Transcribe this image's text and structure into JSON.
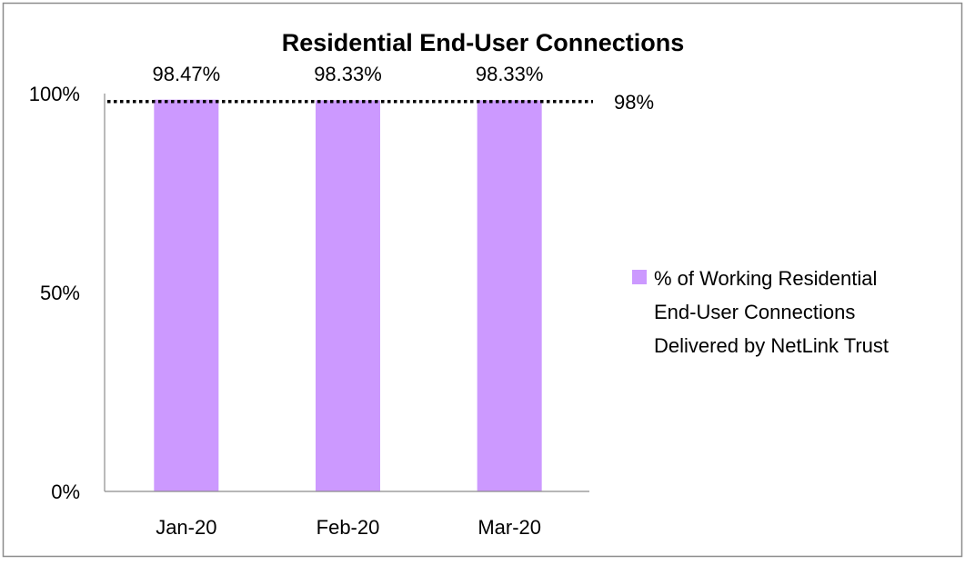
{
  "chart_data": {
    "type": "bar",
    "title": "Residential End-User Connections",
    "xlabel": "",
    "ylabel": "",
    "categories": [
      "Jan-20",
      "Feb-20",
      "Mar-20"
    ],
    "series": [
      {
        "name": "% of Working Residential End-User Connections Delivered by NetLink Trust",
        "legend_lines": [
          "% of Working Residential",
          "End-User Connections",
          "Delivered by NetLink Trust"
        ],
        "values": [
          98.47,
          98.33,
          98.33
        ],
        "labels": [
          "98.47%",
          "98.33%",
          "98.33%"
        ],
        "color": "#cc99ff"
      }
    ],
    "target": {
      "value": 98,
      "label": "98%",
      "style": "dotted",
      "color": "#000000"
    },
    "ylim": [
      0,
      100
    ],
    "yticks": [
      {
        "value": 0,
        "label": "0%"
      },
      {
        "value": 50,
        "label": "50%"
      },
      {
        "value": 100,
        "label": "100%"
      }
    ],
    "grid": false,
    "legend_position": "right"
  }
}
